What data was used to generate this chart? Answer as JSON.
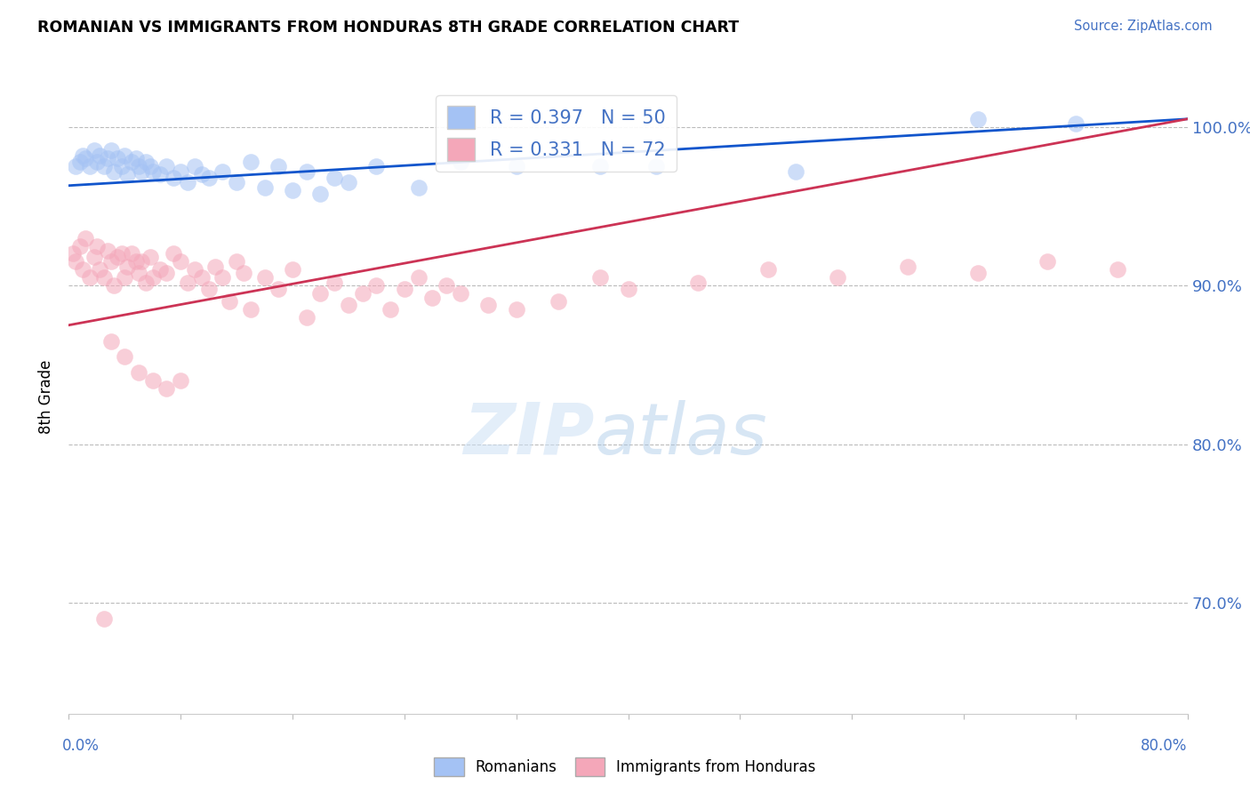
{
  "title": "ROMANIAN VS IMMIGRANTS FROM HONDURAS 8TH GRADE CORRELATION CHART",
  "source": "Source: ZipAtlas.com",
  "ylabel": "8th Grade",
  "blue_label": "Romanians",
  "pink_label": "Immigrants from Honduras",
  "blue_R": 0.397,
  "blue_N": 50,
  "pink_R": 0.331,
  "pink_N": 72,
  "blue_color": "#a4c2f4",
  "pink_color": "#f4a7b9",
  "blue_line_color": "#1155cc",
  "pink_line_color": "#cc3355",
  "xlim": [
    0.0,
    80.0
  ],
  "ylim": [
    63.0,
    103.0
  ],
  "yticks": [
    70,
    80,
    90,
    100
  ],
  "blue_scatter_x": [
    0.5,
    0.8,
    1.0,
    1.2,
    1.5,
    1.8,
    2.0,
    2.2,
    2.5,
    2.8,
    3.0,
    3.2,
    3.5,
    3.8,
    4.0,
    4.2,
    4.5,
    4.8,
    5.0,
    5.2,
    5.5,
    5.8,
    6.0,
    6.5,
    7.0,
    7.5,
    8.0,
    8.5,
    9.0,
    9.5,
    10.0,
    11.0,
    12.0,
    13.0,
    14.0,
    15.0,
    16.0,
    17.0,
    18.0,
    19.0,
    20.0,
    22.0,
    25.0,
    28.0,
    32.0,
    38.0,
    42.0,
    52.0,
    65.0,
    72.0
  ],
  "blue_scatter_y": [
    97.5,
    97.8,
    98.2,
    98.0,
    97.5,
    98.5,
    97.8,
    98.2,
    97.5,
    98.0,
    98.5,
    97.2,
    98.0,
    97.5,
    98.2,
    97.0,
    97.8,
    98.0,
    97.5,
    97.2,
    97.8,
    97.5,
    97.2,
    97.0,
    97.5,
    96.8,
    97.2,
    96.5,
    97.5,
    97.0,
    96.8,
    97.2,
    96.5,
    97.8,
    96.2,
    97.5,
    96.0,
    97.2,
    95.8,
    96.8,
    96.5,
    97.5,
    96.2,
    97.8,
    97.5,
    97.5,
    97.5,
    97.2,
    100.5,
    100.2
  ],
  "pink_scatter_x": [
    0.3,
    0.5,
    0.8,
    1.0,
    1.2,
    1.5,
    1.8,
    2.0,
    2.2,
    2.5,
    2.8,
    3.0,
    3.2,
    3.5,
    3.8,
    4.0,
    4.2,
    4.5,
    4.8,
    5.0,
    5.2,
    5.5,
    5.8,
    6.0,
    6.5,
    7.0,
    7.5,
    8.0,
    8.5,
    9.0,
    9.5,
    10.0,
    10.5,
    11.0,
    11.5,
    12.0,
    12.5,
    13.0,
    14.0,
    15.0,
    16.0,
    17.0,
    18.0,
    19.0,
    20.0,
    21.0,
    22.0,
    23.0,
    24.0,
    25.0,
    26.0,
    27.0,
    28.0,
    30.0,
    32.0,
    35.0,
    38.0,
    40.0,
    45.0,
    50.0,
    55.0,
    60.0,
    65.0,
    70.0,
    75.0,
    3.0,
    4.0,
    5.0,
    6.0,
    7.0,
    8.0,
    2.5
  ],
  "pink_scatter_y": [
    92.0,
    91.5,
    92.5,
    91.0,
    93.0,
    90.5,
    91.8,
    92.5,
    91.0,
    90.5,
    92.2,
    91.5,
    90.0,
    91.8,
    92.0,
    90.5,
    91.2,
    92.0,
    91.5,
    90.8,
    91.5,
    90.2,
    91.8,
    90.5,
    91.0,
    90.8,
    92.0,
    91.5,
    90.2,
    91.0,
    90.5,
    89.8,
    91.2,
    90.5,
    89.0,
    91.5,
    90.8,
    88.5,
    90.5,
    89.8,
    91.0,
    88.0,
    89.5,
    90.2,
    88.8,
    89.5,
    90.0,
    88.5,
    89.8,
    90.5,
    89.2,
    90.0,
    89.5,
    88.8,
    88.5,
    89.0,
    90.5,
    89.8,
    90.2,
    91.0,
    90.5,
    91.2,
    90.8,
    91.5,
    91.0,
    86.5,
    85.5,
    84.5,
    84.0,
    83.5,
    84.0,
    69.0
  ],
  "blue_trendline_x": [
    0,
    80
  ],
  "blue_trendline_y": [
    96.3,
    100.5
  ],
  "pink_trendline_x": [
    0,
    80
  ],
  "pink_trendline_y": [
    87.5,
    100.5
  ]
}
